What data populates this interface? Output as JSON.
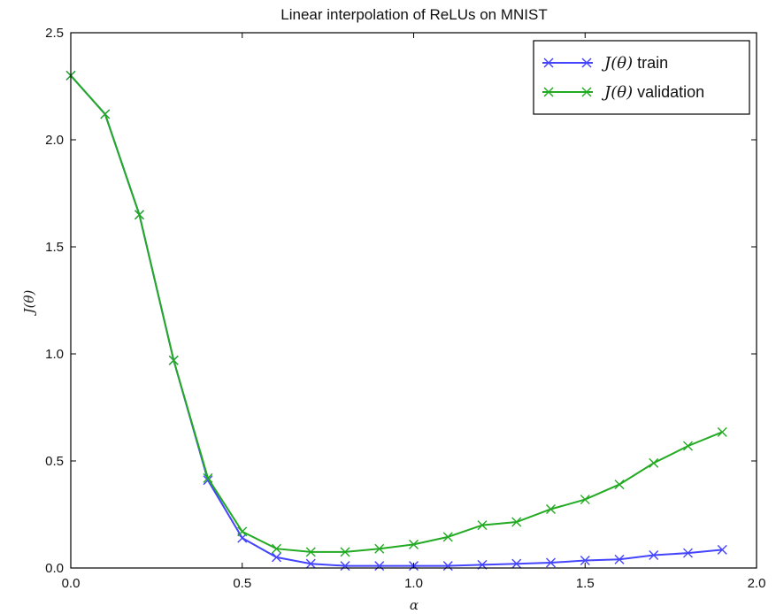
{
  "chart_data": {
    "type": "line",
    "title": "Linear interpolation of ReLUs on MNIST",
    "xlabel": "α",
    "ylabel": "J(θ)",
    "xlim": [
      0.0,
      2.0
    ],
    "ylim": [
      0.0,
      2.5
    ],
    "xticks": [
      "0.0",
      "0.5",
      "1.0",
      "1.5",
      "2.0"
    ],
    "yticks": [
      "0.0",
      "0.5",
      "1.0",
      "1.5",
      "2.0",
      "2.5"
    ],
    "grid": false,
    "legend_position": "top-right",
    "x": [
      0.0,
      0.1,
      0.2,
      0.3,
      0.4,
      0.5,
      0.6,
      0.7,
      0.8,
      0.9,
      1.0,
      1.1,
      1.2,
      1.3,
      1.4,
      1.5,
      1.6,
      1.7,
      1.8,
      1.9
    ],
    "series": [
      {
        "name": "J(θ) train",
        "color": "#4444ff",
        "marker": "x",
        "values": [
          2.3,
          2.12,
          1.65,
          0.97,
          0.41,
          0.14,
          0.05,
          0.02,
          0.01,
          0.01,
          0.01,
          0.01,
          0.015,
          0.02,
          0.025,
          0.035,
          0.04,
          0.06,
          0.07,
          0.085
        ]
      },
      {
        "name": "J(θ) validation",
        "color": "#22aa22",
        "marker": "x",
        "values": [
          2.3,
          2.12,
          1.65,
          0.97,
          0.42,
          0.17,
          0.09,
          0.075,
          0.075,
          0.09,
          0.11,
          0.145,
          0.2,
          0.215,
          0.275,
          0.32,
          0.39,
          0.49,
          0.57,
          0.635
        ]
      }
    ]
  }
}
